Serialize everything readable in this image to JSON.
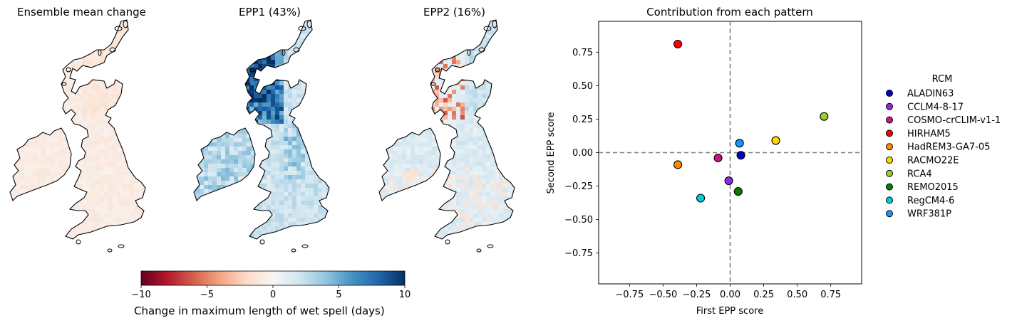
{
  "maps": [
    {
      "title": "Ensemble mean change",
      "pattern": "mean"
    },
    {
      "title": "EPP1 (43%)",
      "pattern": "epp1"
    },
    {
      "title": "EPP2 (16%)",
      "pattern": "epp2"
    }
  ],
  "colorbar": {
    "label": "Change in maximum length of wet spell (days)",
    "ticks": [
      -10,
      -5,
      0,
      5,
      10
    ],
    "range": [
      -10,
      10
    ],
    "colormap": "RdBu",
    "colors": [
      "#67001f",
      "#b2182b",
      "#d6604d",
      "#f4a582",
      "#fddbc7",
      "#f7f7f7",
      "#d1e5f0",
      "#92c5de",
      "#4393c3",
      "#2166ac",
      "#053061"
    ]
  },
  "chart_data": {
    "type": "scatter",
    "title": "Contribution from each pattern",
    "xlabel": "First EPP score",
    "ylabel": "Second EPP score",
    "xlim": [
      -0.98,
      0.98
    ],
    "ylim": [
      -0.98,
      0.98
    ],
    "xticks": [
      -0.75,
      -0.5,
      -0.25,
      0.0,
      0.25,
      0.5,
      0.75
    ],
    "yticks": [
      -0.75,
      -0.5,
      -0.25,
      0.0,
      0.25,
      0.5,
      0.75
    ],
    "xtick_labels": [
      "−0.75",
      "−0.50",
      "−0.25",
      "0.00",
      "0.25",
      "0.50",
      "0.75"
    ],
    "ytick_labels": [
      "−0.75",
      "−0.50",
      "−0.25",
      "0.00",
      "0.25",
      "0.50",
      "0.75"
    ],
    "reference_lines": {
      "x": 0,
      "y": 0,
      "style": "dashed",
      "color": "#808080"
    },
    "legend_title": "RCM",
    "legend_position": "right, outside",
    "points": [
      {
        "name": "ALADIN63",
        "x": 0.08,
        "y": -0.02,
        "color": "#0000cd"
      },
      {
        "name": "CCLM4-8-17",
        "x": -0.01,
        "y": -0.21,
        "color": "#8a2be2"
      },
      {
        "name": "COSMO-crCLIM-v1-1",
        "x": -0.09,
        "y": -0.04,
        "color": "#c71585"
      },
      {
        "name": "HIRHAM5",
        "x": -0.39,
        "y": 0.81,
        "color": "#ff0000"
      },
      {
        "name": "HadREM3-GA7-05",
        "x": -0.39,
        "y": -0.09,
        "color": "#ff8c00"
      },
      {
        "name": "RACMO22E",
        "x": 0.34,
        "y": 0.09,
        "color": "#ffd700"
      },
      {
        "name": "RCA4",
        "x": 0.7,
        "y": 0.27,
        "color": "#9acd32"
      },
      {
        "name": "REMO2015",
        "x": 0.06,
        "y": -0.29,
        "color": "#008000"
      },
      {
        "name": "RegCM4-6",
        "x": -0.22,
        "y": -0.34,
        "color": "#00ced1"
      },
      {
        "name": "WRF381P",
        "x": 0.07,
        "y": 0.07,
        "color": "#1e90ff"
      }
    ]
  }
}
